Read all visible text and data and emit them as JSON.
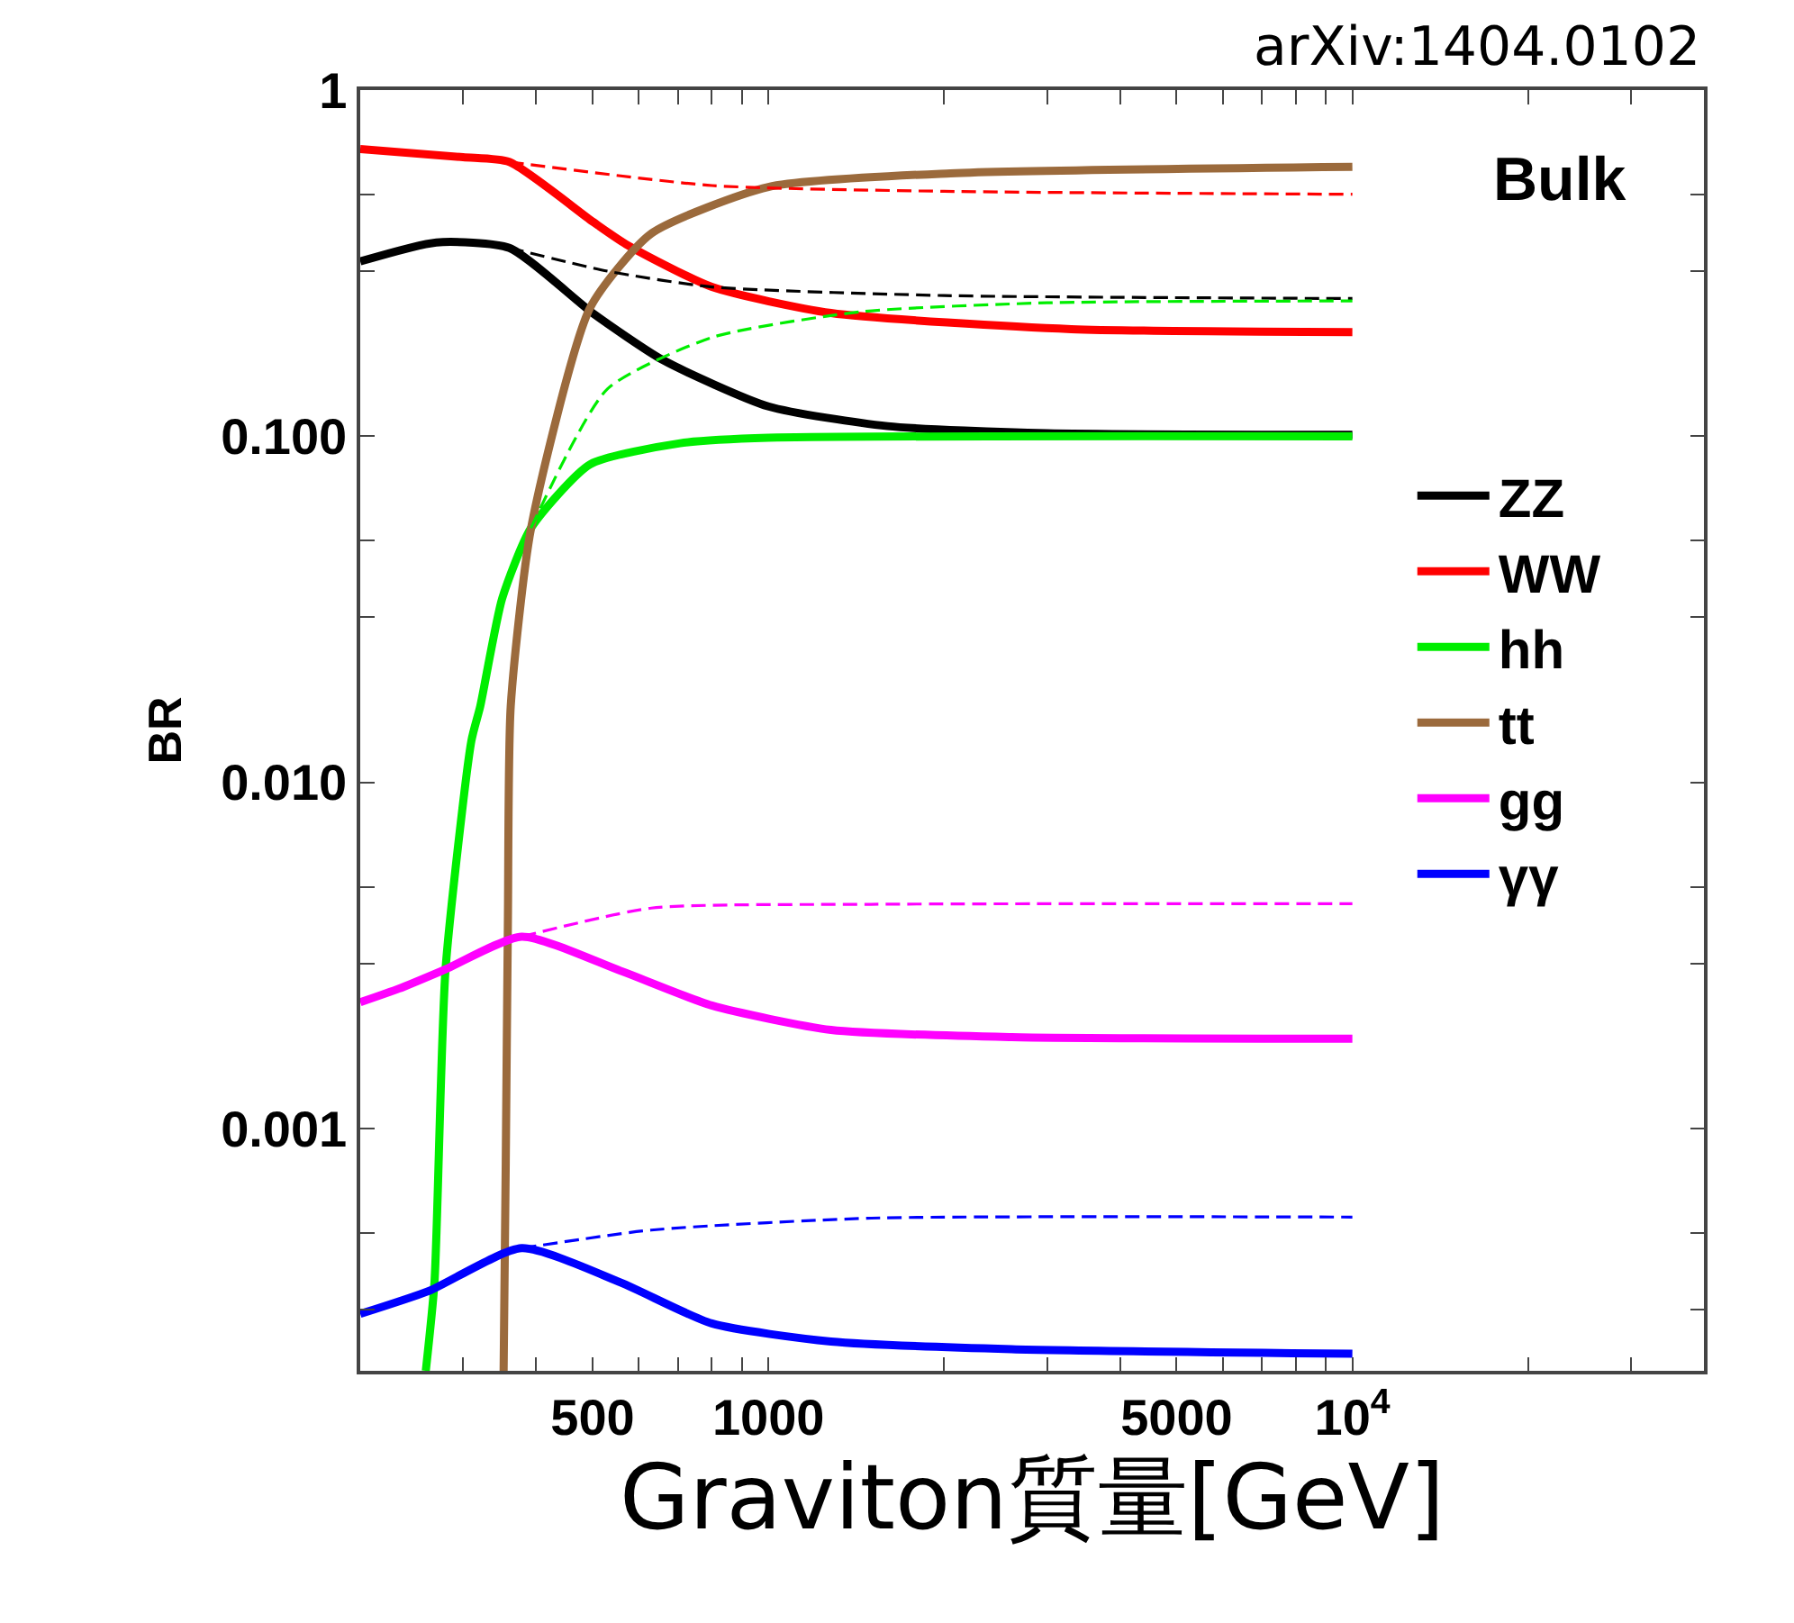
{
  "chart_data": {
    "type": "line",
    "xlabel": "Graviton質量[GeV]",
    "ylabel": "BR",
    "log": "xy",
    "legend": "right",
    "line_style": "solid",
    "annotations": [
      "Bulk",
      "arXiv:1404.0102"
    ],
    "xlim": [
      200,
      40000
    ],
    "ylim": [
      0.0002,
      1
    ],
    "xticks": [
      500,
      1000,
      5000,
      {
        "value": 10000,
        "label": "10$^{4}$"
      },
      {
        "value": 300,
        "label": null
      },
      {
        "value": 400,
        "label": null
      },
      {
        "value": 600,
        "label": null
      },
      {
        "value": 700,
        "label": null
      },
      {
        "value": 800,
        "label": null
      },
      {
        "value": 900,
        "label": null
      },
      {
        "value": 2000,
        "label": null
      },
      {
        "value": 3000,
        "label": null
      },
      {
        "value": 4000,
        "label": null
      },
      {
        "value": 6000,
        "label": null
      },
      {
        "value": 7000,
        "label": null
      },
      {
        "value": 8000,
        "label": null
      },
      {
        "value": 9000,
        "label": null
      },
      {
        "value": 20000,
        "label": null
      },
      {
        "value": 30000,
        "label": null
      }
    ],
    "yticks": [
      1,
      {
        "value": 0.1,
        "label": "0.100"
      },
      {
        "value": 0.01,
        "label": "0.010"
      },
      {
        "value": 0.001,
        "label": "0.001"
      },
      {
        "value": 0.0003,
        "label": null
      },
      {
        "value": 0.0005,
        "label": null
      },
      {
        "value": 0.003,
        "label": null
      },
      {
        "value": 0.005,
        "label": null
      },
      {
        "value": 0.03,
        "label": null
      },
      {
        "value": 0.05,
        "label": null
      },
      {
        "value": 0.3,
        "label": null
      },
      {
        "value": 0.5,
        "label": null
      }
    ],
    "series": [
      {
        "name": "ZZ",
        "color": "#000000",
        "x": [
          200,
          270,
          360,
          500,
          660,
          1000,
          1600,
          3000,
          10000
        ],
        "values": [
          0.32,
          0.363,
          0.35,
          0.227,
          0.166,
          0.122,
          0.107,
          0.102,
          0.101
        ]
      },
      {
        "name": "WW",
        "color": "#ff0000",
        "x": [
          200,
          300,
          360,
          500,
          570,
          800,
          1280,
          3300,
          10000
        ],
        "values": [
          0.676,
          0.64,
          0.62,
          0.417,
          0.359,
          0.27,
          0.227,
          0.204,
          0.2
        ]
      },
      {
        "name": "hh",
        "color": "#00ee00",
        "x": [
          259,
          268,
          280,
          310,
          321,
          350,
          392,
          495,
          706,
          1000,
          10000
        ],
        "values": [
          0.0002,
          0.00036,
          0.0029,
          0.0132,
          0.0166,
          0.034,
          0.0543,
          0.083,
          0.0955,
          0.099,
          0.1
        ]
      },
      {
        "name": "tt",
        "color": "#9b6a3c",
        "x": [
          352,
          355,
          358,
          362,
          392,
          495,
          630,
          1000,
          2050,
          10000
        ],
        "values": [
          0.0002,
          0.0008,
          0.004,
          0.0166,
          0.054,
          0.235,
          0.385,
          0.525,
          0.575,
          0.6
        ]
      },
      {
        "name": "gg",
        "color": "#ff00ff",
        "x": [
          200,
          233,
          280,
          378,
          558,
          800,
          1280,
          2610,
          10000
        ],
        "values": [
          0.00232,
          0.00254,
          0.00289,
          0.00359,
          0.00286,
          0.00227,
          0.00193,
          0.00184,
          0.00182
        ]
      },
      {
        "name": "γγ",
        "color": "#0000ff",
        "x": [
          200,
          262,
          378,
          558,
          800,
          1280,
          2610,
          10000
        ],
        "values": [
          0.000292,
          0.00034,
          0.000452,
          0.00036,
          0.000274,
          0.000243,
          0.000231,
          0.000224
        ]
      },
      {
        "color": "#000000",
        "line_style": "dashed",
        "x": [
          360,
          530,
          800,
          2000,
          10000
        ],
        "values": [
          0.35,
          0.3,
          0.27,
          0.255,
          0.25
        ]
      },
      {
        "color": "#ff0000",
        "line_style": "dashed",
        "x": [
          360,
          800,
          2000,
          10000
        ],
        "values": [
          0.62,
          0.53,
          0.51,
          0.5
        ]
      },
      {
        "color": "#00ee00",
        "line_style": "dashed",
        "x": [
          392,
          530,
          800,
          1440,
          3000,
          10000
        ],
        "values": [
          0.0543,
          0.137,
          0.193,
          0.229,
          0.243,
          0.246
        ]
      },
      {
        "color": "#ff00ff",
        "line_style": "dashed",
        "x": [
          378,
          630,
          1500,
          10000
        ],
        "values": [
          0.00359,
          0.00434,
          0.00445,
          0.00447
        ]
      },
      {
        "color": "#0000ff",
        "line_style": "dashed",
        "x": [
          378,
          630,
          1500,
          10000
        ],
        "values": [
          0.000452,
          0.00051,
          0.000552,
          0.000556
        ]
      }
    ]
  }
}
